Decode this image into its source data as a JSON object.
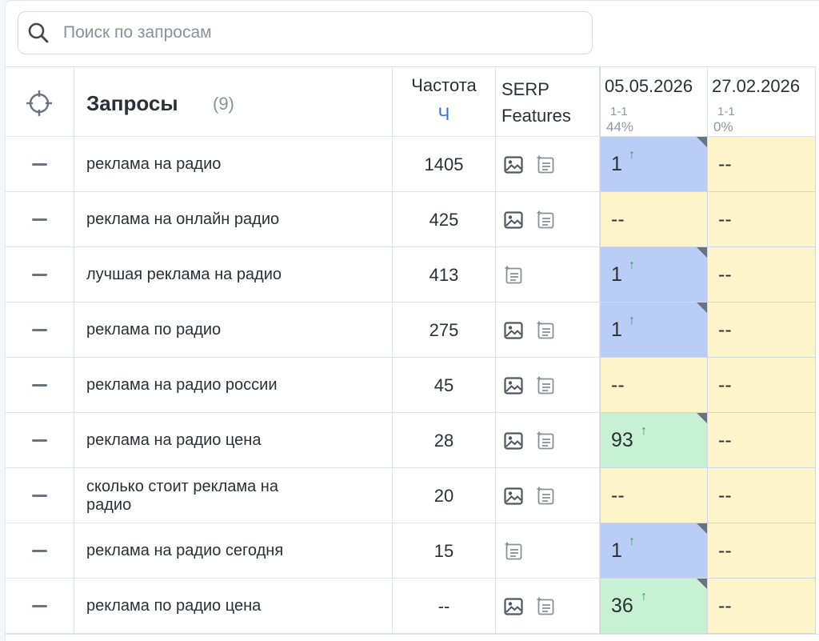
{
  "search": {
    "placeholder": "Поиск по запросам"
  },
  "header": {
    "queries_title": "Запросы",
    "queries_count": "(9)",
    "frequency_label": "Частота",
    "frequency_sub": "Ч",
    "serp_line1": "SERP",
    "serp_line2": "Features",
    "dates": [
      {
        "date": "05.05.2026",
        "range": "1-1",
        "pct": "44%"
      },
      {
        "date": "27.02.2026",
        "range": "1-1",
        "pct": "0%"
      }
    ]
  },
  "colors": {
    "blue_cell": "#b9cdf6",
    "green_cell": "#c8f1d4",
    "yellow_cell": "#fdf5c9",
    "accent_blue": "#2e73e6",
    "arrow_green": "#22a84a"
  },
  "rows": [
    {
      "query": "реклама на радио",
      "freq": "1405",
      "features": [
        "image-icon",
        "featured-snippet-icon"
      ],
      "positions": [
        {
          "value": "1",
          "color": "blue",
          "arrow": "↑",
          "corner": true
        },
        {
          "value": "--",
          "color": "yellow",
          "arrow": "",
          "corner": false
        }
      ]
    },
    {
      "query": "реклама на онлайн радио",
      "freq": "425",
      "features": [
        "image-icon",
        "featured-snippet-icon"
      ],
      "positions": [
        {
          "value": "--",
          "color": "yellow",
          "arrow": "",
          "corner": false
        },
        {
          "value": "--",
          "color": "yellow",
          "arrow": "",
          "corner": false
        }
      ]
    },
    {
      "query": "лучшая реклама на радио",
      "freq": "413",
      "features": [
        "featured-snippet-icon"
      ],
      "positions": [
        {
          "value": "1",
          "color": "blue",
          "arrow": "↑",
          "corner": true
        },
        {
          "value": "--",
          "color": "yellow",
          "arrow": "",
          "corner": false
        }
      ]
    },
    {
      "query": "реклама по радио",
      "freq": "275",
      "features": [
        "image-icon",
        "featured-snippet-icon"
      ],
      "positions": [
        {
          "value": "1",
          "color": "blue",
          "arrow": "↑",
          "corner": true
        },
        {
          "value": "--",
          "color": "yellow",
          "arrow": "",
          "corner": false
        }
      ]
    },
    {
      "query": "реклама на радио россии",
      "freq": "45",
      "features": [
        "image-icon",
        "featured-snippet-icon"
      ],
      "positions": [
        {
          "value": "--",
          "color": "yellow",
          "arrow": "",
          "corner": false
        },
        {
          "value": "--",
          "color": "yellow",
          "arrow": "",
          "corner": false
        }
      ]
    },
    {
      "query": "реклама на радио цена",
      "freq": "28",
      "features": [
        "image-icon",
        "featured-snippet-icon"
      ],
      "positions": [
        {
          "value": "93",
          "color": "green",
          "arrow": "↑",
          "corner": true
        },
        {
          "value": "--",
          "color": "yellow",
          "arrow": "",
          "corner": false
        }
      ]
    },
    {
      "query": "сколько стоит реклама на радио",
      "freq": "20",
      "features": [
        "image-icon",
        "featured-snippet-icon"
      ],
      "positions": [
        {
          "value": "--",
          "color": "yellow",
          "arrow": "",
          "corner": false
        },
        {
          "value": "--",
          "color": "yellow",
          "arrow": "",
          "corner": false
        }
      ]
    },
    {
      "query": "реклама на радио сегодня",
      "freq": "15",
      "features": [
        "featured-snippet-icon"
      ],
      "positions": [
        {
          "value": "1",
          "color": "blue",
          "arrow": "↑",
          "corner": true
        },
        {
          "value": "--",
          "color": "yellow",
          "arrow": "",
          "corner": false
        }
      ]
    },
    {
      "query": "реклама по радио цена",
      "freq": "--",
      "features": [
        "image-icon",
        "featured-snippet-icon"
      ],
      "positions": [
        {
          "value": "36",
          "color": "green",
          "arrow": "↑",
          "corner": true
        },
        {
          "value": "--",
          "color": "yellow",
          "arrow": "",
          "corner": false
        }
      ]
    }
  ]
}
